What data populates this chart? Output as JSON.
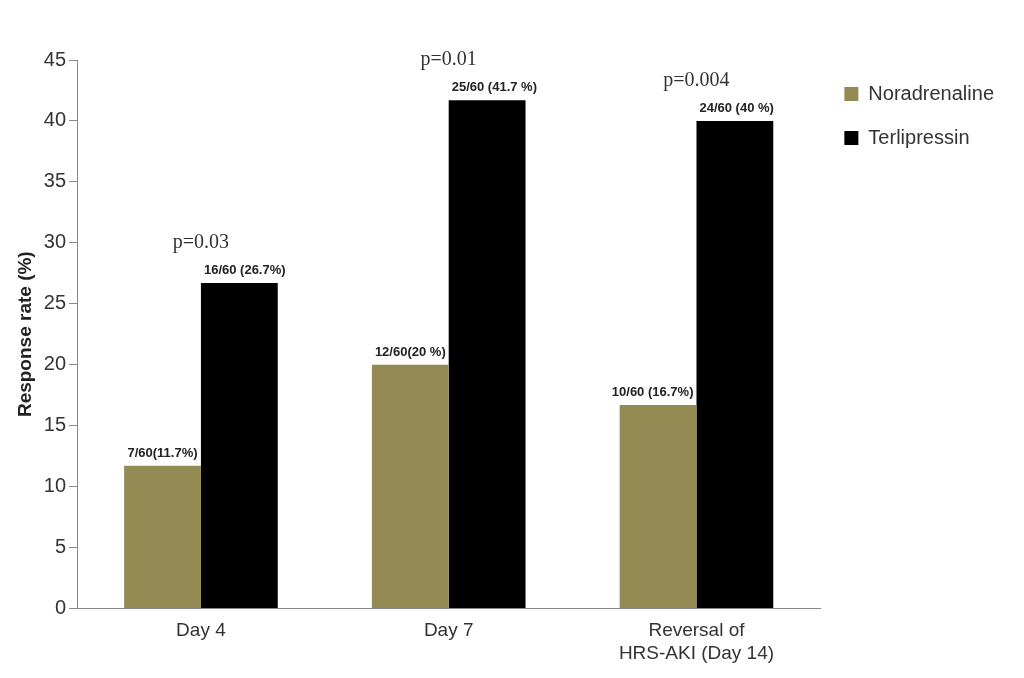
{
  "chart_data": {
    "type": "bar",
    "ylabel": "Response rate (%)",
    "categories": [
      "Day 4",
      "Day 7",
      "Reversal of HRS-AKI (Day 14)"
    ],
    "series": [
      {
        "name": "Noradrenaline",
        "color": "#948a54",
        "values": [
          11.7,
          20,
          16.7
        ],
        "value_labels": [
          "7/60(11.7%)",
          "12/60(20 %)",
          "10/60 (16.7%)"
        ]
      },
      {
        "name": "Terlipressin",
        "color": "#000000",
        "values": [
          26.7,
          41.7,
          40
        ],
        "value_labels": [
          "16/60 (26.7%)",
          "25/60 (41.7 %)",
          "24/60 (40 %)"
        ]
      }
    ],
    "annotations": [
      "p=0.03",
      "p=0.01",
      "p=0.004"
    ],
    "ylim": [
      0,
      45
    ],
    "yticks": [
      0,
      5,
      10,
      15,
      20,
      25,
      30,
      35,
      40,
      45
    ],
    "grid": false,
    "legend": "right"
  }
}
